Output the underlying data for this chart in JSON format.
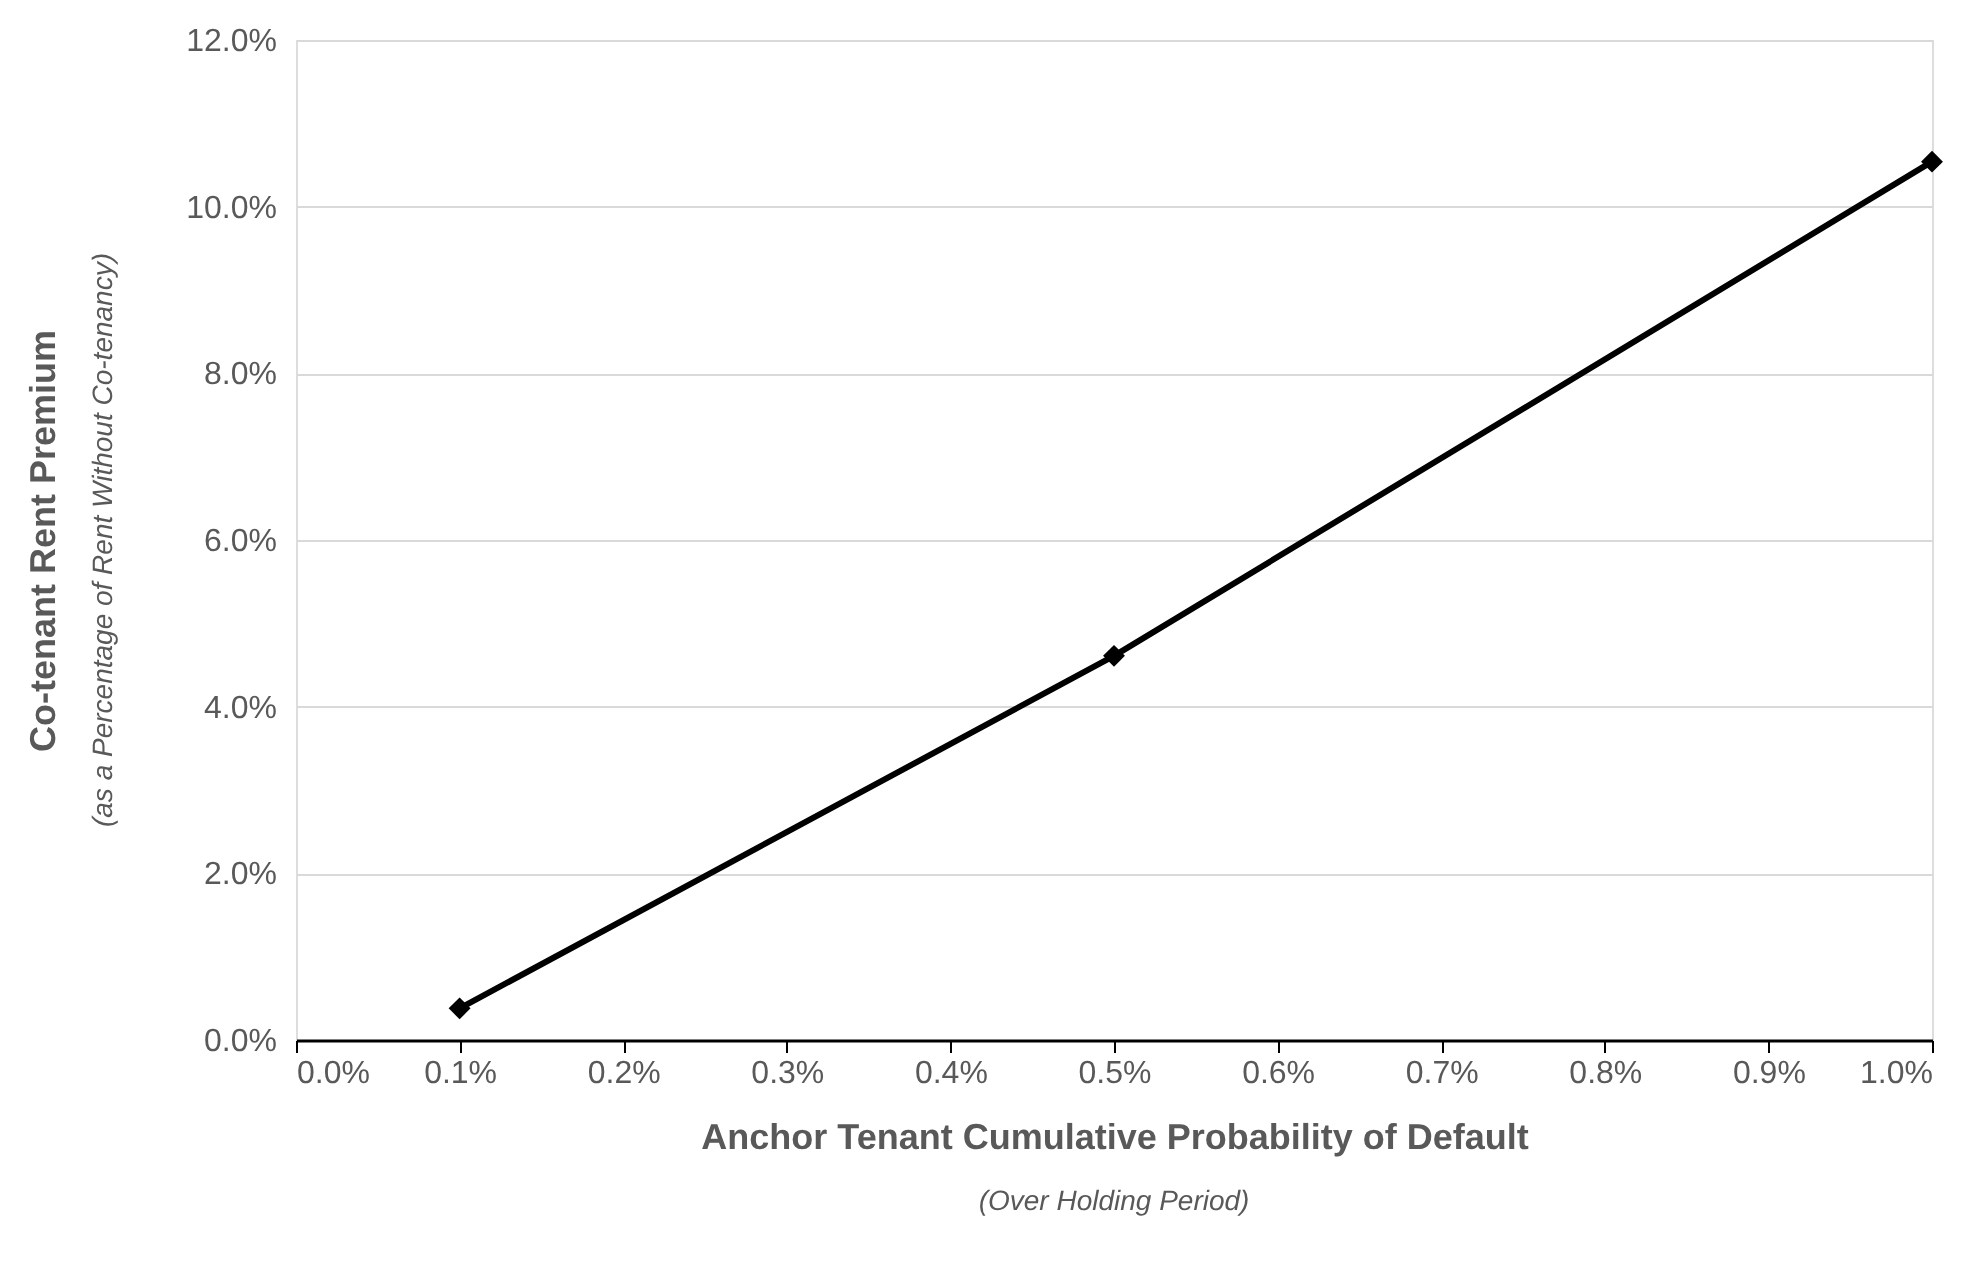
{
  "chart_data": {
    "type": "line",
    "xlabel": "Anchor Tenant Cumulative Probability of Default",
    "ylabel": "Co-tenant Rent Premium",
    "annotations": [
      "(Over Holding Period)",
      "(as a Percentage of Rent Without Co-tenancy)"
    ],
    "x": [
      0.1,
      0.5,
      1.0
    ],
    "series": [
      {
        "color": "#000000",
        "values": [
          0.38,
          4.61,
          10.54
        ]
      }
    ],
    "xlim": [
      0.0,
      1.0
    ],
    "xticks": [
      {
        "value": 0.0,
        "label": "0.0%"
      },
      {
        "value": 0.1,
        "label": "0.1%"
      },
      {
        "value": 0.2,
        "label": "0.2%"
      },
      {
        "value": 0.3,
        "label": "0.3%"
      },
      {
        "value": 0.4,
        "label": "0.4%"
      },
      {
        "value": 0.5,
        "label": "0.5%"
      },
      {
        "value": 0.6,
        "label": "0.6%"
      },
      {
        "value": 0.7,
        "label": "0.7%"
      },
      {
        "value": 0.8,
        "label": "0.8%"
      },
      {
        "value": 0.9,
        "label": "0.9%"
      },
      {
        "value": 1.0,
        "label": "1.0%"
      }
    ],
    "ylim": [
      0,
      12
    ],
    "yticks": [
      {
        "value": 0,
        "label": "0.0%"
      },
      {
        "value": 2,
        "label": "2.0%"
      },
      {
        "value": 4,
        "label": "4.0%"
      },
      {
        "value": 6,
        "label": "6.0%"
      },
      {
        "value": 8,
        "label": "8.0%"
      },
      {
        "value": 10,
        "label": "10.0%"
      },
      {
        "value": 12,
        "label": "12.0%"
      }
    ],
    "grid": "y",
    "marker": "diamond",
    "line_style": "solid",
    "legend": false
  }
}
